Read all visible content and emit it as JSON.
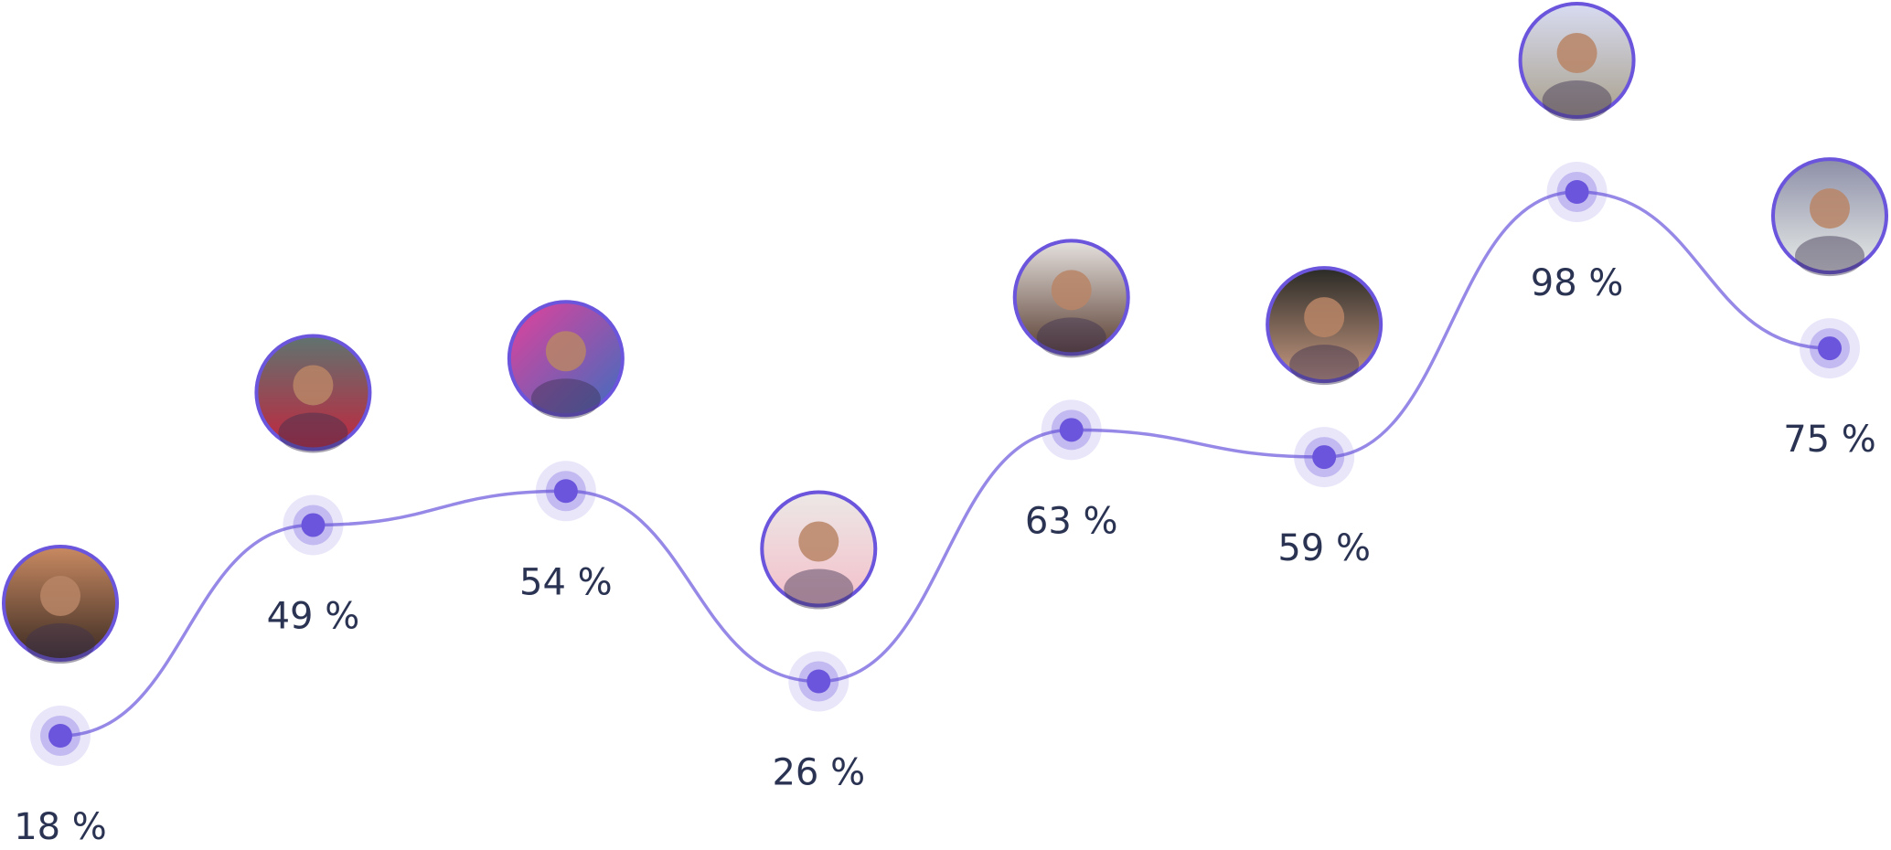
{
  "chart_data": {
    "type": "line",
    "values": [
      18,
      49,
      54,
      26,
      63,
      59,
      98,
      75
    ],
    "value_labels": [
      "18 %",
      "49 %",
      "54 %",
      "26 %",
      "63 %",
      "59 %",
      "98 %",
      "75 %"
    ],
    "color": "#6a55dc"
  }
}
